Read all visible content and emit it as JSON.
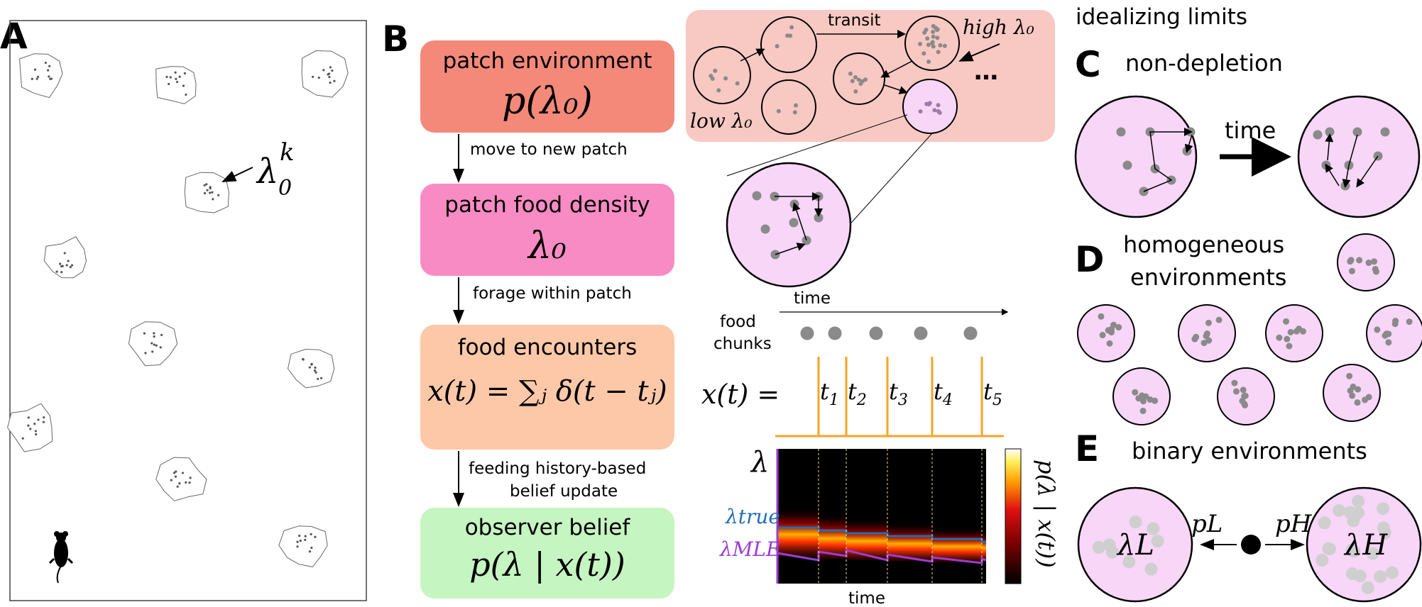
{
  "panels": {
    "a": {
      "letter": "A",
      "patch_label_base": "λ",
      "patch_label_sub": "0",
      "patch_label_sup": "k"
    },
    "b": {
      "letter": "B",
      "boxes": [
        {
          "title": "patch environment",
          "formula": "p(λ₀)",
          "color": "#f4897a"
        },
        {
          "title": "patch food density",
          "formula": "λ₀",
          "color": "#f98bc4"
        },
        {
          "title": "food encounters",
          "formula": "x(t) = ∑ⱼ δ(t − tⱼ)",
          "color": "#fdc8a8"
        },
        {
          "title": "observer belief",
          "formula": "p(λ | x(t))",
          "color": "#c5f5c0"
        }
      ],
      "arrows": [
        "move to new patch",
        "forage within patch",
        "feeding history-based",
        "belief update"
      ],
      "env": {
        "transit": "transit",
        "high_label": "high λ₀",
        "low_label": "low λ₀",
        "dots": "…"
      },
      "timeline": {
        "time_label": "time",
        "food_chunks_1": "food",
        "food_chunks_2": "chunks",
        "xt_label": "x(t) =",
        "ticks": [
          "t1",
          "t2",
          "t3",
          "t4",
          "t5"
        ]
      },
      "heatmap": {
        "lambda_label": "λ",
        "true_label": "λtrue",
        "mle_label": "λMLE",
        "x_label": "time",
        "colorbar_label": "p(λ | x(t))"
      }
    },
    "right": {
      "header": "idealizing limits",
      "c": {
        "letter": "C",
        "title": "non-depletion",
        "arrow_label": "time"
      },
      "d": {
        "letter": "D",
        "title_1": "homogeneous",
        "title_2": "environments"
      },
      "e": {
        "letter": "E",
        "title": "binary environments",
        "left_label": "λL",
        "right_label": "λH",
        "pl": "pL",
        "ph": "pH"
      }
    }
  },
  "colors": {
    "patch_fill": "#f7d6f7",
    "dot": "#8a8a8a",
    "env_bg": "#f8c8c2",
    "orange": "#f5a623",
    "true_line": "#1f6fb5",
    "mle_line": "#9b3dd6"
  }
}
